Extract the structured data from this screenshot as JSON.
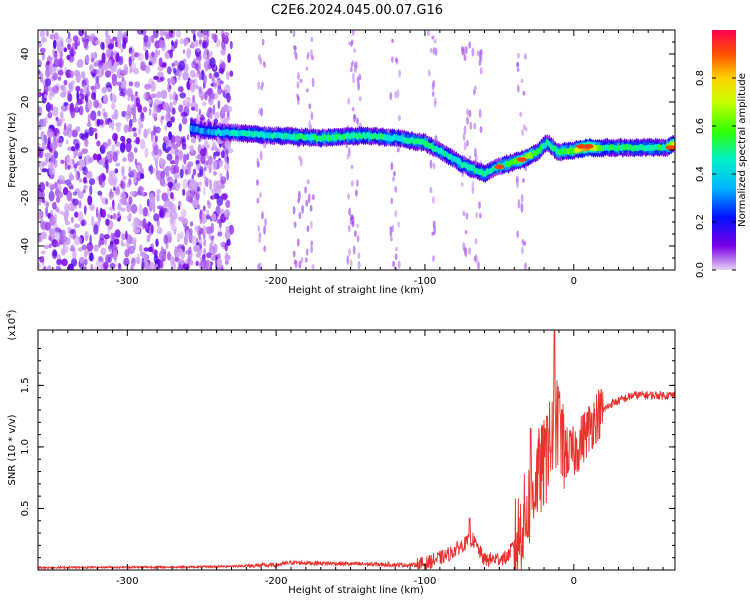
{
  "title": "C2E6.2024.045.00.07.G16",
  "chart_data": [
    {
      "type": "heatmap",
      "xlabel": "Height of straight line (km)",
      "ylabel": "Frequency (Hz)",
      "xlim": [
        -360,
        68
      ],
      "ylim": [
        -50,
        50
      ],
      "xticks": [
        -300,
        -200,
        -100,
        0
      ],
      "yticks": [
        -40,
        -20,
        0,
        20,
        40
      ],
      "colorbar": {
        "label": "Normalized spectral amplitude",
        "range": [
          0,
          1
        ],
        "ticks": [
          "0.0",
          "0.2",
          "0.4",
          "0.6",
          "0.8"
        ],
        "tick_values": [
          0.0,
          0.2,
          0.4,
          0.6,
          0.8
        ]
      },
      "noise_region_end_km": -230,
      "signal_track": [
        {
          "x": -257,
          "y": 9,
          "amp": 0.35
        },
        {
          "x": -250,
          "y": 8,
          "amp": 0.3
        },
        {
          "x": -228,
          "y": 7,
          "amp": 0.45
        },
        {
          "x": -200,
          "y": 6,
          "amp": 0.45
        },
        {
          "x": -170,
          "y": 5,
          "amp": 0.5
        },
        {
          "x": -140,
          "y": 6,
          "amp": 0.5
        },
        {
          "x": -120,
          "y": 5,
          "amp": 0.45
        },
        {
          "x": -100,
          "y": 3,
          "amp": 0.5
        },
        {
          "x": -88,
          "y": -1,
          "amp": 0.45
        },
        {
          "x": -75,
          "y": -6,
          "amp": 0.45
        },
        {
          "x": -60,
          "y": -10,
          "amp": 0.5
        },
        {
          "x": -52,
          "y": -7,
          "amp": 0.45
        },
        {
          "x": -45,
          "y": -6,
          "amp": 0.5
        },
        {
          "x": -35,
          "y": -4,
          "amp": 0.7
        },
        {
          "x": -25,
          "y": -1,
          "amp": 0.55
        },
        {
          "x": -18,
          "y": 3,
          "amp": 0.45
        },
        {
          "x": -10,
          "y": -1,
          "amp": 0.5
        },
        {
          "x": 0,
          "y": 0,
          "amp": 0.6
        },
        {
          "x": 8,
          "y": 1,
          "amp": 0.9
        },
        {
          "x": 20,
          "y": 1,
          "amp": 0.5
        },
        {
          "x": 40,
          "y": 1,
          "amp": 0.5
        },
        {
          "x": 62,
          "y": 1,
          "amp": 0.5
        },
        {
          "x": 68,
          "y": 3,
          "amp": 0.8
        }
      ],
      "hot_spots": [
        {
          "x": -50,
          "y": -7
        },
        {
          "x": -35,
          "y": -4
        },
        {
          "x": 5,
          "y": 1.5
        },
        {
          "x": 10,
          "y": 1.5
        },
        {
          "x": 65,
          "y": 1
        }
      ]
    },
    {
      "type": "line",
      "xlabel": "Height of straight line (km)",
      "ylabel": "SNR (10 * v/v)",
      "scale_label": "(x10",
      "scale_exp": "4",
      "xlim": [
        -360,
        68
      ],
      "ylim": [
        0,
        1.95
      ],
      "xticks": [
        -300,
        -200,
        -100,
        0
      ],
      "yticks": [
        0.5,
        1.0,
        1.5
      ],
      "line_color": "#e8302c",
      "snr_profile": [
        {
          "x": -360,
          "y": 0.02
        },
        {
          "x": -250,
          "y": 0.025
        },
        {
          "x": -200,
          "y": 0.04
        },
        {
          "x": -190,
          "y": 0.06
        },
        {
          "x": -150,
          "y": 0.05
        },
        {
          "x": -110,
          "y": 0.04
        },
        {
          "x": -100,
          "y": 0.05
        },
        {
          "x": -85,
          "y": 0.12
        },
        {
          "x": -75,
          "y": 0.2
        },
        {
          "x": -68,
          "y": 0.25
        },
        {
          "x": -60,
          "y": 0.08
        },
        {
          "x": -45,
          "y": 0.1
        },
        {
          "x": -38,
          "y": 0.25
        },
        {
          "x": -32,
          "y": 0.45
        },
        {
          "x": -25,
          "y": 0.75
        },
        {
          "x": -20,
          "y": 0.85
        },
        {
          "x": -15,
          "y": 1.05
        },
        {
          "x": -12,
          "y": 1.2
        },
        {
          "x": -5,
          "y": 0.95
        },
        {
          "x": 0,
          "y": 0.95
        },
        {
          "x": 5,
          "y": 1.05
        },
        {
          "x": 15,
          "y": 1.25
        },
        {
          "x": 25,
          "y": 1.35
        },
        {
          "x": 40,
          "y": 1.42
        },
        {
          "x": 68,
          "y": 1.42
        }
      ],
      "peaks": [
        {
          "x": -13,
          "y": 1.95
        },
        {
          "x": -10,
          "y": 1.4
        },
        {
          "x": -18,
          "y": 1.25
        },
        {
          "x": -29,
          "y": 1.15
        },
        {
          "x": -8,
          "y": 1.3
        },
        {
          "x": -70,
          "y": 0.42
        }
      ]
    }
  ]
}
